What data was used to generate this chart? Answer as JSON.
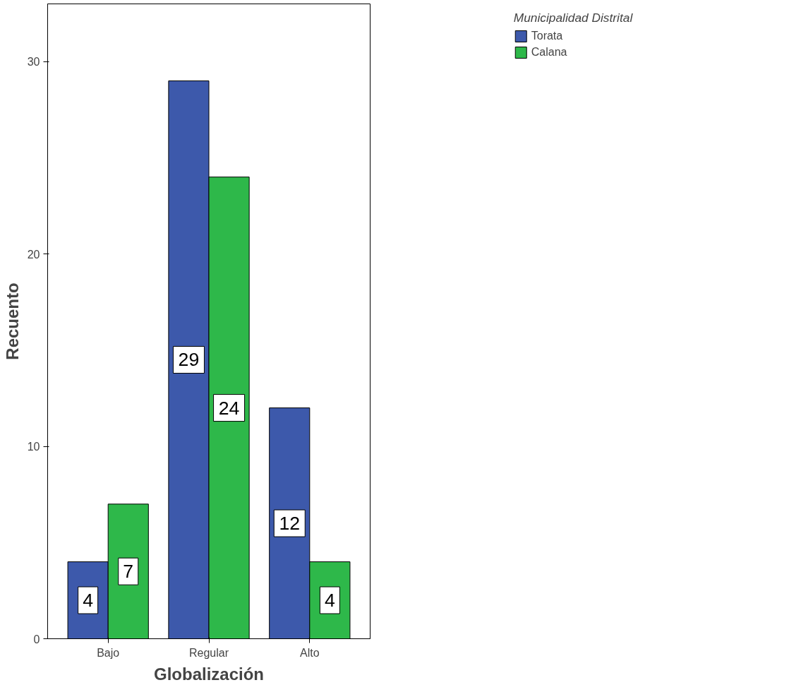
{
  "chart_data": {
    "type": "bar",
    "xlabel": "Globalización",
    "ylabel": "Recuento",
    "legend_title": "Municipalidad Distrital",
    "categories": [
      "Bajo",
      "Regular",
      "Alto"
    ],
    "series": [
      {
        "name": "Torata",
        "color": "#3d59ab",
        "values": [
          4,
          29,
          12
        ]
      },
      {
        "name": "Calana",
        "color": "#2eb84a",
        "values": [
          7,
          24,
          4
        ]
      }
    ],
    "ylim": [
      0,
      33
    ],
    "yticks": [
      0,
      10,
      20,
      30
    ],
    "grid": false,
    "legend": "top right",
    "data_labels": true
  }
}
